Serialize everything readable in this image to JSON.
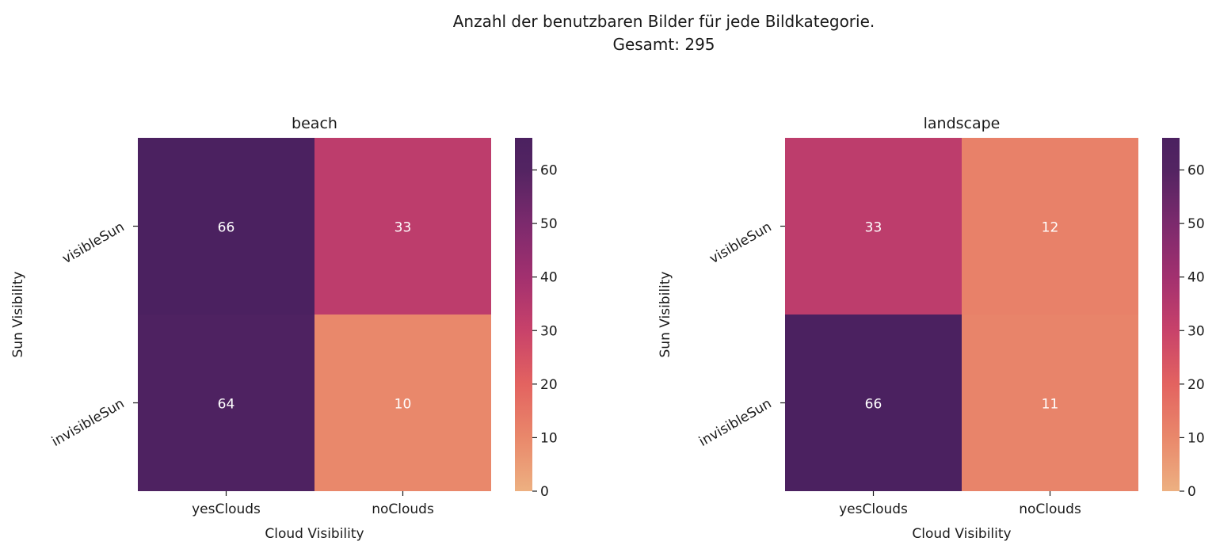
{
  "suptitle": {
    "line1": "Anzahl der benutzbaren Bilder für jede Bildkategorie.",
    "line2": "Gesamt: 295"
  },
  "colorbar": {
    "min": 0,
    "max": 66,
    "ticks": [
      0,
      10,
      20,
      30,
      40,
      50,
      60
    ],
    "colormap": "flare",
    "color_stops": [
      {
        "v": 0,
        "c": "#edb081"
      },
      {
        "v": 10,
        "c": "#e9886b"
      },
      {
        "v": 20,
        "c": "#e36360"
      },
      {
        "v": 30,
        "c": "#c8426a"
      },
      {
        "v": 40,
        "c": "#a2306f"
      },
      {
        "v": 50,
        "c": "#7c2a6d"
      },
      {
        "v": 60,
        "c": "#532462"
      },
      {
        "v": 66,
        "c": "#4b2160"
      }
    ]
  },
  "chart_data": [
    {
      "type": "heatmap",
      "title": "beach",
      "xlabel": "Cloud Visibility",
      "ylabel": "Sun Visibility",
      "x_categories": [
        "yesClouds",
        "noClouds"
      ],
      "y_categories": [
        "visibleSun",
        "invisibleSun"
      ],
      "values": [
        [
          66,
          33
        ],
        [
          64,
          10
        ]
      ],
      "annotations": true
    },
    {
      "type": "heatmap",
      "title": "landscape",
      "xlabel": "Cloud Visibility",
      "ylabel": "Sun Visibility",
      "x_categories": [
        "yesClouds",
        "noClouds"
      ],
      "y_categories": [
        "visibleSun",
        "invisibleSun"
      ],
      "values": [
        [
          33,
          12
        ],
        [
          66,
          11
        ]
      ],
      "annotations": true
    }
  ]
}
